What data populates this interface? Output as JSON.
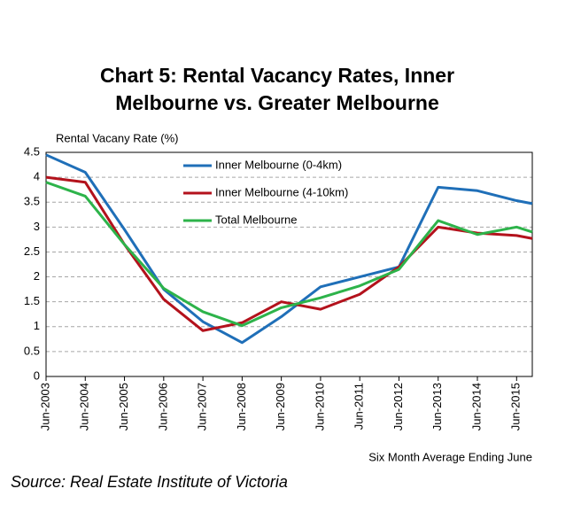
{
  "chart_data": {
    "type": "line",
    "title_lines": [
      "Chart 5: Rental Vacancy Rates, Inner",
      "Melbourne vs. Greater Melbourne"
    ],
    "y_label": "Rental Vacany Rate (%)",
    "x_label": "Six Month Average Ending June",
    "source": "Source: Real Estate Institute of Victoria",
    "x": [
      2003,
      2004,
      2005,
      2006,
      2007,
      2008,
      2009,
      2010,
      2011,
      2012,
      2013,
      2014,
      2015,
      2015.4
    ],
    "xlim": [
      2003,
      2015.4
    ],
    "xticks": [
      {
        "value": 2003,
        "label": "Jun-2003"
      },
      {
        "value": 2004,
        "label": "Jun-2004"
      },
      {
        "value": 2005,
        "label": "Jun-2005"
      },
      {
        "value": 2006,
        "label": "Jun-2006"
      },
      {
        "value": 2007,
        "label": "Jun-2007"
      },
      {
        "value": 2008,
        "label": "Jun-2008"
      },
      {
        "value": 2009,
        "label": "Jun-2009"
      },
      {
        "value": 2010,
        "label": "Jun-2010"
      },
      {
        "value": 2011,
        "label": "Jun-2011"
      },
      {
        "value": 2012,
        "label": "Jun-2012"
      },
      {
        "value": 2013,
        "label": "Jun-2013"
      },
      {
        "value": 2014,
        "label": "Jun-2014"
      },
      {
        "value": 2015,
        "label": "Jun-2015"
      }
    ],
    "ylim": [
      0,
      4.5
    ],
    "yticks": [
      0,
      0.5,
      1,
      1.5,
      2,
      2.5,
      3,
      3.5,
      4,
      4.5
    ],
    "grid": true,
    "legend": "upper left",
    "series": [
      {
        "name": "Inner Melbourne (0-4km)",
        "color": "#1f6fb8",
        "values": [
          4.45,
          4.1,
          2.95,
          1.75,
          1.1,
          0.68,
          1.2,
          1.8,
          2.0,
          2.2,
          3.8,
          3.73,
          3.53,
          3.47
        ]
      },
      {
        "name": "Inner Melbourne (4-10km)",
        "color": "#b3121c",
        "values": [
          4.0,
          3.9,
          2.65,
          1.55,
          0.92,
          1.08,
          1.5,
          1.35,
          1.65,
          2.2,
          3.0,
          2.88,
          2.83,
          2.77
        ]
      },
      {
        "name": "Total Melbourne",
        "color": "#2db34a",
        "values": [
          3.9,
          3.62,
          2.65,
          1.77,
          1.3,
          1.02,
          1.38,
          1.58,
          1.82,
          2.15,
          3.13,
          2.85,
          3.0,
          2.9
        ]
      }
    ]
  }
}
